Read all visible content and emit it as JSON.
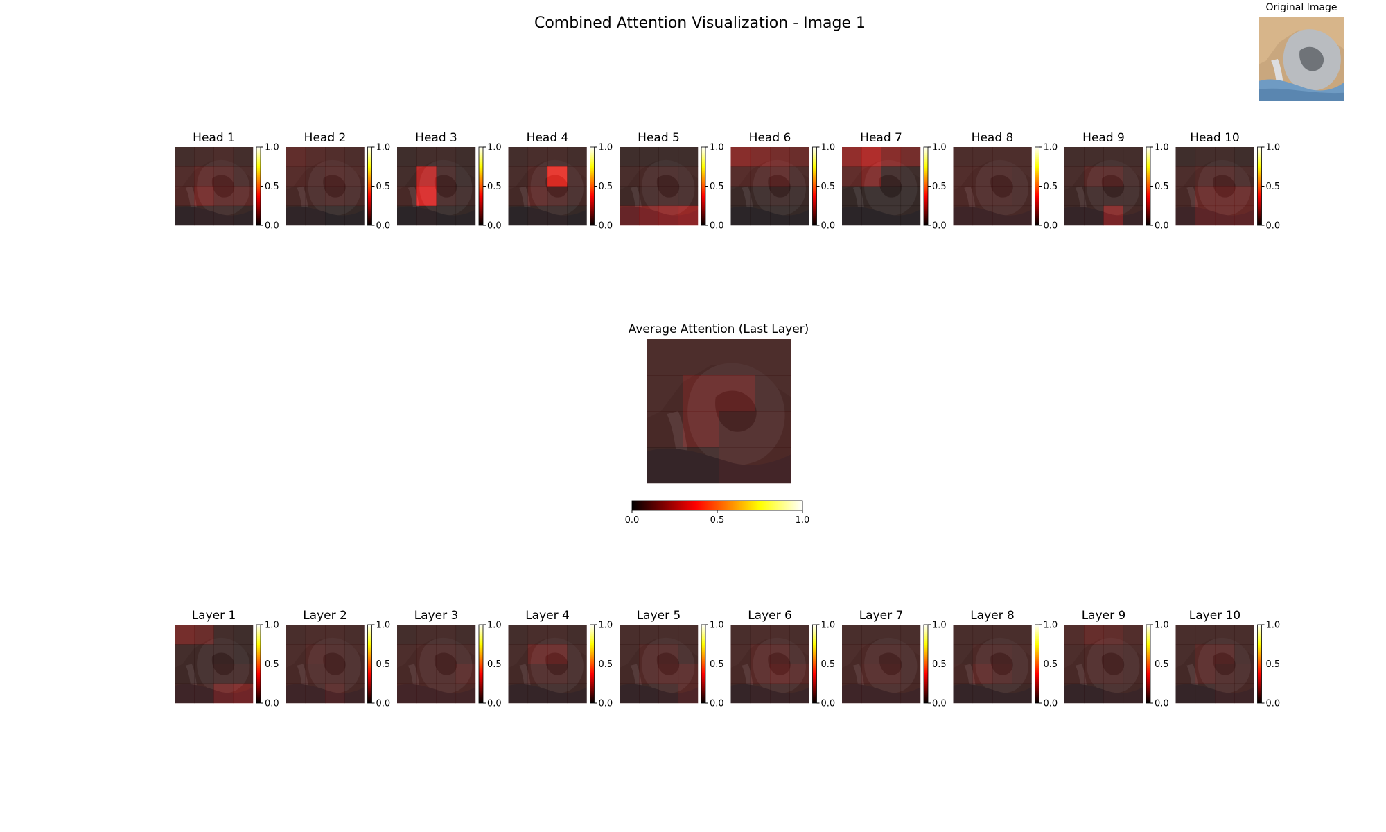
{
  "figure": {
    "title": "Combined Attention Visualization - Image 1",
    "original_label": "Original Image",
    "average_title": "Average Attention (Last Layer)"
  },
  "colormap": {
    "name": "hot",
    "stops": [
      "#000000",
      "#e60000",
      "#ffff00",
      "#ffffff"
    ],
    "alpha": 0.7
  },
  "chart_data": [
    {
      "type": "heatmap",
      "group": "heads",
      "colorbar": {
        "ticks": [
          "1.0",
          "0.5",
          "0.0"
        ],
        "range": [
          0,
          1
        ]
      },
      "panels": [
        {
          "title": "Head 1",
          "grid": [
            [
              0.04,
              0.05,
              0.06,
              0.04
            ],
            [
              0.07,
              0.1,
              0.09,
              0.06
            ],
            [
              0.08,
              0.14,
              0.1,
              0.1
            ],
            [
              0.03,
              0.04,
              0.04,
              0.03
            ]
          ]
        },
        {
          "title": "Head 2",
          "grid": [
            [
              0.1,
              0.08,
              0.07,
              0.06
            ],
            [
              0.08,
              0.07,
              0.08,
              0.07
            ],
            [
              0.06,
              0.06,
              0.07,
              0.06
            ],
            [
              0.03,
              0.03,
              0.02,
              0.02
            ]
          ]
        },
        {
          "title": "Head 3",
          "grid": [
            [
              0.03,
              0.04,
              0.04,
              0.03
            ],
            [
              0.04,
              0.28,
              0.06,
              0.03
            ],
            [
              0.06,
              0.34,
              0.06,
              0.04
            ],
            [
              0.02,
              0.03,
              0.02,
              0.02
            ]
          ]
        },
        {
          "title": "Head 4",
          "grid": [
            [
              0.04,
              0.05,
              0.05,
              0.04
            ],
            [
              0.05,
              0.08,
              0.38,
              0.06
            ],
            [
              0.05,
              0.1,
              0.08,
              0.05
            ],
            [
              0.02,
              0.03,
              0.03,
              0.02
            ]
          ]
        },
        {
          "title": "Head 5",
          "grid": [
            [
              0.03,
              0.03,
              0.03,
              0.03
            ],
            [
              0.05,
              0.06,
              0.06,
              0.05
            ],
            [
              0.04,
              0.05,
              0.06,
              0.05
            ],
            [
              0.14,
              0.18,
              0.2,
              0.22
            ]
          ]
        },
        {
          "title": "Head 6",
          "grid": [
            [
              0.18,
              0.16,
              0.14,
              0.12
            ],
            [
              0.08,
              0.08,
              0.1,
              0.06
            ],
            [
              0.03,
              0.03,
              0.04,
              0.03
            ],
            [
              0.02,
              0.02,
              0.02,
              0.02
            ]
          ]
        },
        {
          "title": "Head 7",
          "grid": [
            [
              0.2,
              0.26,
              0.18,
              0.14
            ],
            [
              0.1,
              0.16,
              0.04,
              0.03
            ],
            [
              0.02,
              0.02,
              0.02,
              0.02
            ],
            [
              0.02,
              0.02,
              0.02,
              0.02
            ]
          ]
        },
        {
          "title": "Head 8",
          "grid": [
            [
              0.06,
              0.06,
              0.06,
              0.06
            ],
            [
              0.07,
              0.07,
              0.07,
              0.06
            ],
            [
              0.07,
              0.07,
              0.07,
              0.06
            ],
            [
              0.06,
              0.06,
              0.06,
              0.06
            ]
          ]
        },
        {
          "title": "Head 9",
          "grid": [
            [
              0.04,
              0.04,
              0.04,
              0.04
            ],
            [
              0.05,
              0.09,
              0.09,
              0.05
            ],
            [
              0.04,
              0.04,
              0.04,
              0.04
            ],
            [
              0.04,
              0.04,
              0.18,
              0.05
            ]
          ]
        },
        {
          "title": "Head 10",
          "grid": [
            [
              0.03,
              0.04,
              0.04,
              0.03
            ],
            [
              0.06,
              0.08,
              0.08,
              0.06
            ],
            [
              0.06,
              0.12,
              0.12,
              0.12
            ],
            [
              0.06,
              0.12,
              0.12,
              0.12
            ]
          ]
        }
      ]
    },
    {
      "type": "heatmap",
      "group": "average",
      "title": "Average Attention (Last Layer)",
      "colorbar": {
        "ticks": [
          "0.0",
          "0.5",
          "1.0"
        ],
        "range": [
          0,
          1
        ],
        "orientation": "horizontal"
      },
      "grid": [
        [
          0.06,
          0.06,
          0.06,
          0.06
        ],
        [
          0.06,
          0.12,
          0.12,
          0.06
        ],
        [
          0.06,
          0.12,
          0.07,
          0.07
        ],
        [
          0.04,
          0.04,
          0.07,
          0.07
        ]
      ]
    },
    {
      "type": "heatmap",
      "group": "layers",
      "colorbar": {
        "ticks": [
          "1.0",
          "0.5",
          "0.0"
        ],
        "range": [
          0,
          1
        ]
      },
      "panels": [
        {
          "title": "Layer 1",
          "grid": [
            [
              0.14,
              0.12,
              0.04,
              0.03
            ],
            [
              0.04,
              0.04,
              0.04,
              0.03
            ],
            [
              0.04,
              0.04,
              0.05,
              0.05
            ],
            [
              0.06,
              0.06,
              0.14,
              0.16
            ]
          ]
        },
        {
          "title": "Layer 2",
          "grid": [
            [
              0.05,
              0.06,
              0.06,
              0.05
            ],
            [
              0.06,
              0.08,
              0.07,
              0.06
            ],
            [
              0.06,
              0.07,
              0.07,
              0.06
            ],
            [
              0.06,
              0.06,
              0.09,
              0.06
            ]
          ]
        },
        {
          "title": "Layer 3",
          "grid": [
            [
              0.04,
              0.05,
              0.05,
              0.04
            ],
            [
              0.06,
              0.07,
              0.07,
              0.06
            ],
            [
              0.06,
              0.07,
              0.07,
              0.09
            ],
            [
              0.07,
              0.07,
              0.07,
              0.07
            ]
          ]
        },
        {
          "title": "Layer 4",
          "grid": [
            [
              0.04,
              0.05,
              0.05,
              0.04
            ],
            [
              0.05,
              0.12,
              0.12,
              0.05
            ],
            [
              0.05,
              0.07,
              0.07,
              0.05
            ],
            [
              0.04,
              0.04,
              0.04,
              0.04
            ]
          ]
        },
        {
          "title": "Layer 5",
          "grid": [
            [
              0.05,
              0.05,
              0.05,
              0.05
            ],
            [
              0.05,
              0.08,
              0.08,
              0.05
            ],
            [
              0.05,
              0.08,
              0.09,
              0.09
            ],
            [
              0.04,
              0.04,
              0.05,
              0.09
            ]
          ]
        },
        {
          "title": "Layer 6",
          "grid": [
            [
              0.05,
              0.06,
              0.06,
              0.05
            ],
            [
              0.06,
              0.09,
              0.09,
              0.06
            ],
            [
              0.06,
              0.09,
              0.11,
              0.09
            ],
            [
              0.04,
              0.05,
              0.05,
              0.05
            ]
          ]
        },
        {
          "title": "Layer 7",
          "grid": [
            [
              0.05,
              0.05,
              0.05,
              0.05
            ],
            [
              0.06,
              0.07,
              0.07,
              0.06
            ],
            [
              0.06,
              0.08,
              0.08,
              0.06
            ],
            [
              0.06,
              0.06,
              0.06,
              0.06
            ]
          ]
        },
        {
          "title": "Layer 8",
          "grid": [
            [
              0.05,
              0.05,
              0.05,
              0.05
            ],
            [
              0.05,
              0.07,
              0.07,
              0.06
            ],
            [
              0.06,
              0.1,
              0.08,
              0.06
            ],
            [
              0.04,
              0.04,
              0.04,
              0.04
            ]
          ]
        },
        {
          "title": "Layer 9",
          "grid": [
            [
              0.07,
              0.11,
              0.1,
              0.07
            ],
            [
              0.06,
              0.07,
              0.07,
              0.06
            ],
            [
              0.06,
              0.07,
              0.07,
              0.06
            ],
            [
              0.04,
              0.04,
              0.05,
              0.05
            ]
          ]
        },
        {
          "title": "Layer 10",
          "grid": [
            [
              0.05,
              0.05,
              0.05,
              0.05
            ],
            [
              0.05,
              0.09,
              0.09,
              0.05
            ],
            [
              0.05,
              0.09,
              0.07,
              0.06
            ],
            [
              0.04,
              0.04,
              0.06,
              0.06
            ]
          ]
        }
      ]
    }
  ]
}
